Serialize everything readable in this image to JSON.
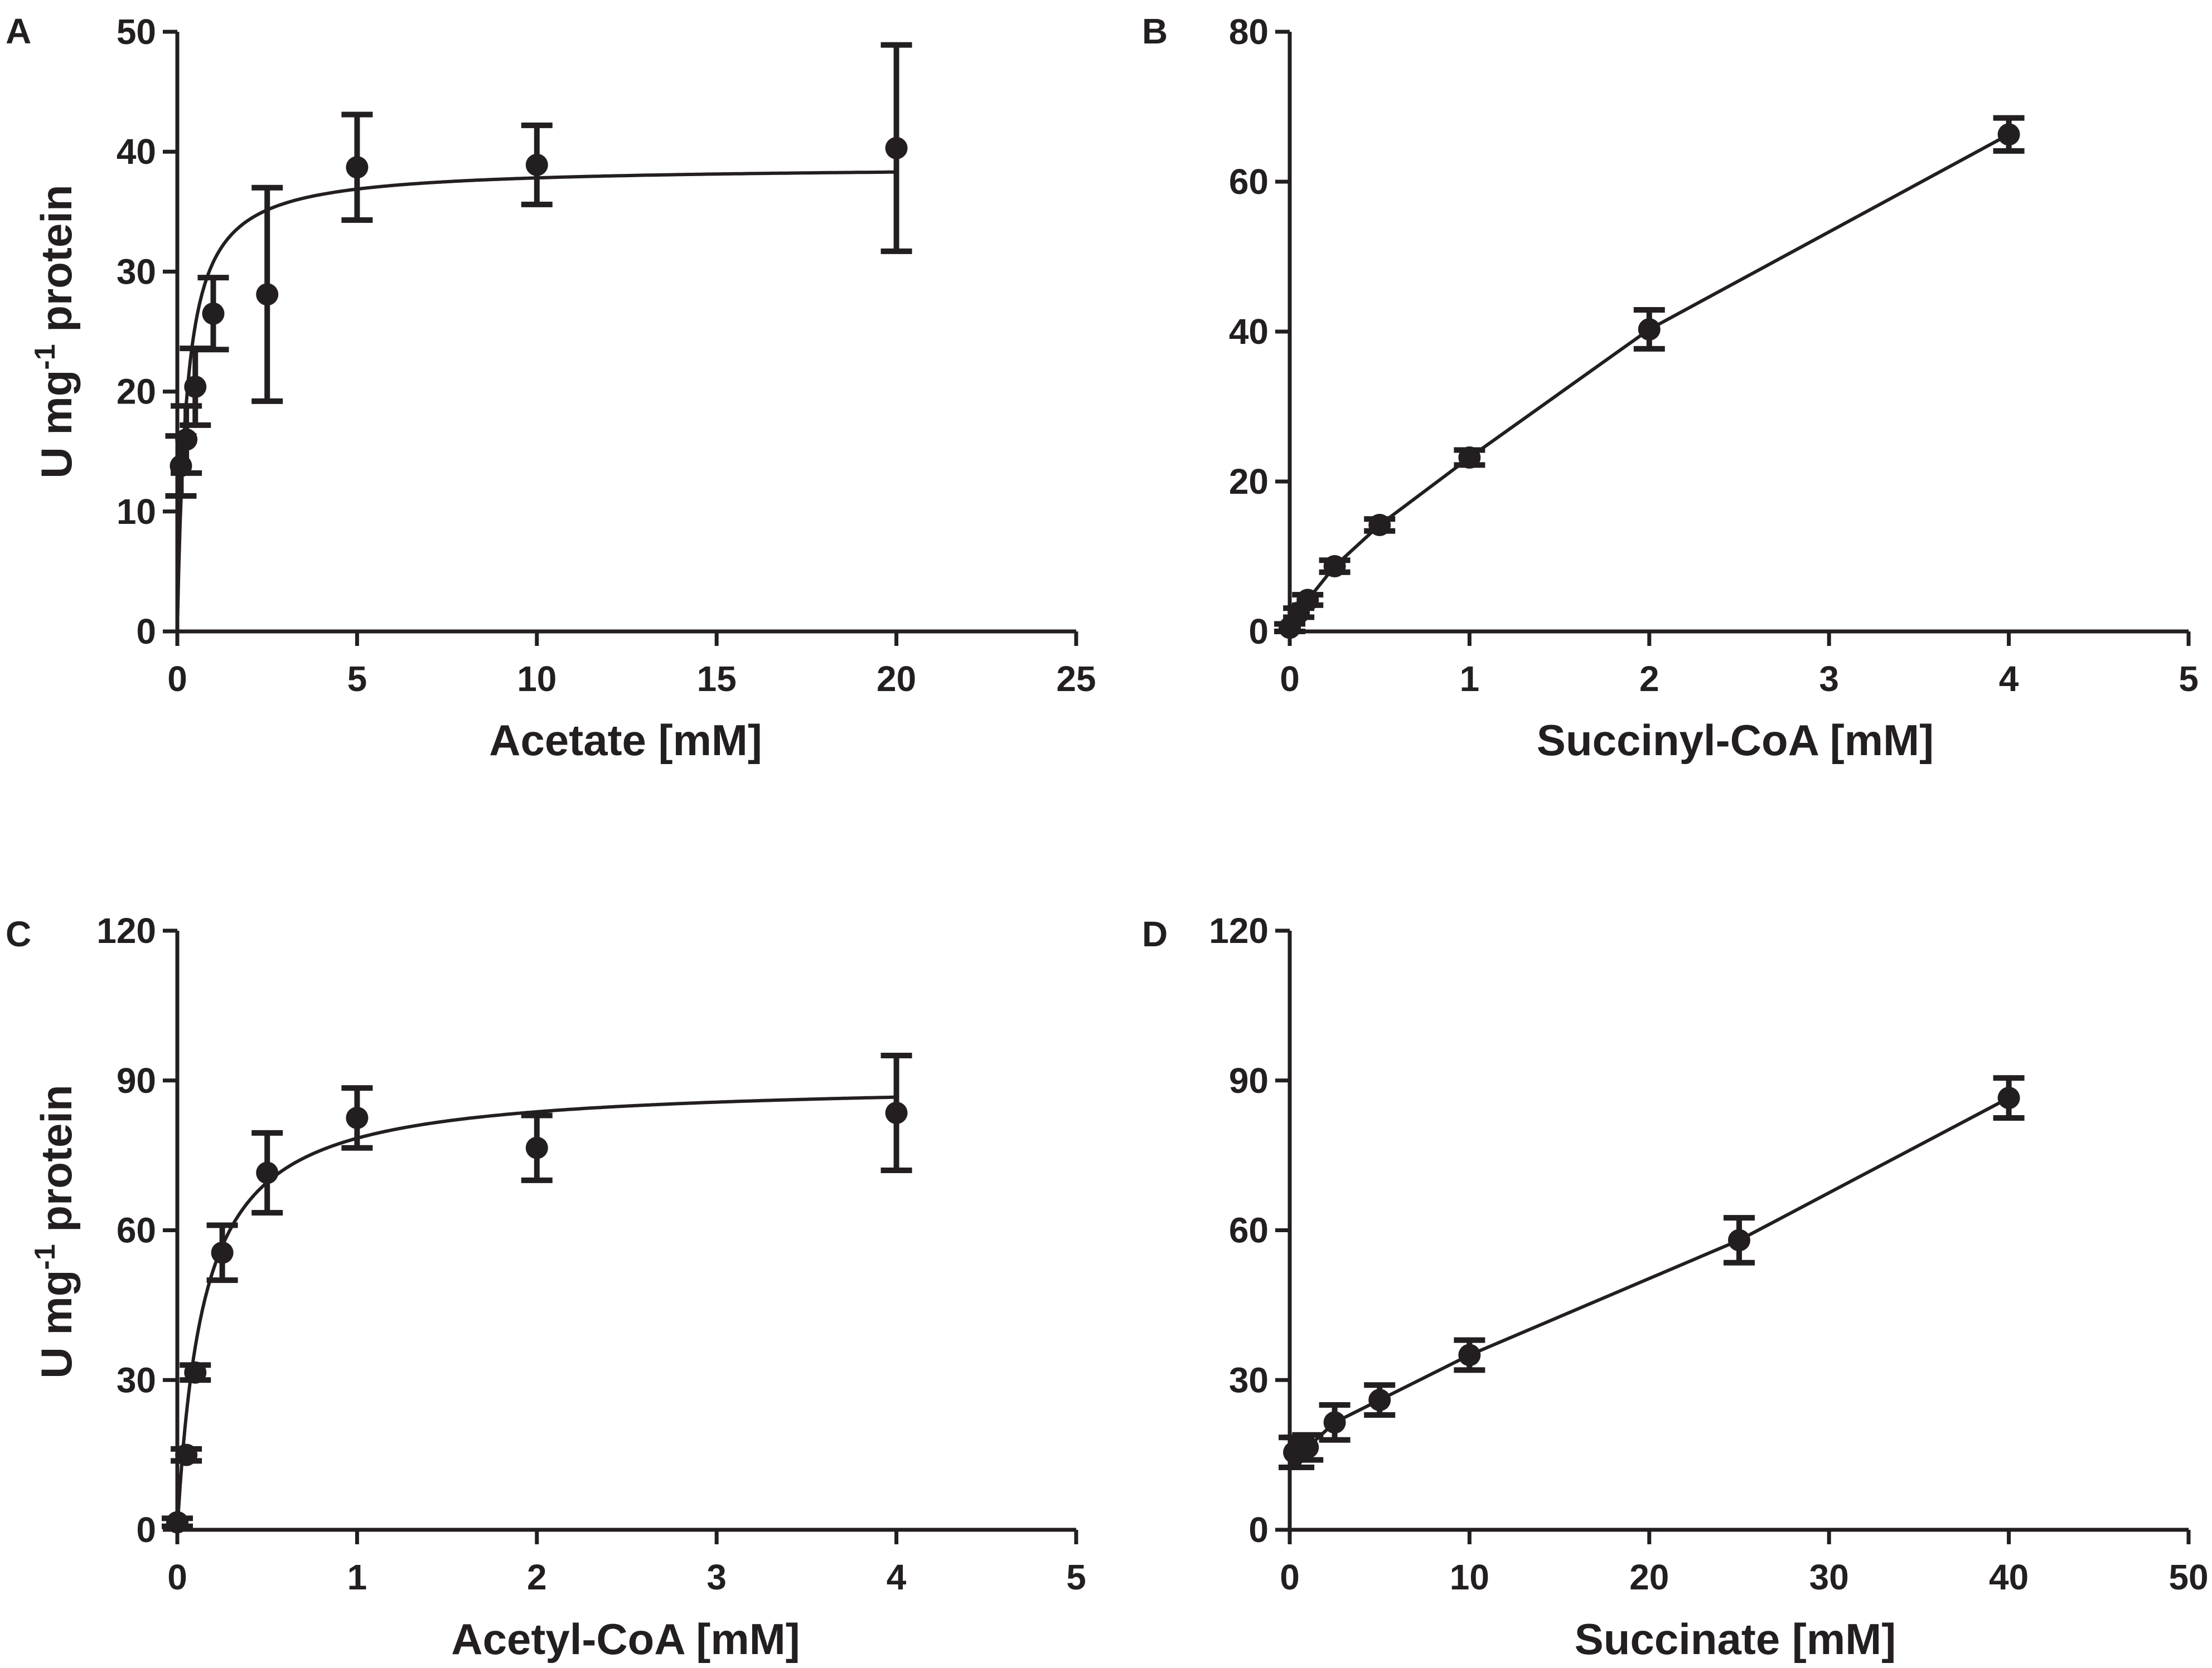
{
  "figure": {
    "background": "#ffffff",
    "ink_color": "#231f20"
  },
  "chart_data": [
    {
      "panel": "A",
      "type": "scatter",
      "fit": "michaelis-menten",
      "fit_params": {
        "vmax": 38.8,
        "km": 0.26
      },
      "xlabel": "Acetate [mM]",
      "ylabel": "U mg",
      "ylabel_sup": "-1",
      "ylabel_rest": " protein",
      "xlim": [
        0,
        25
      ],
      "ylim": [
        0,
        50
      ],
      "xticks": [
        0,
        5,
        10,
        15,
        20,
        25
      ],
      "yticks": [
        0,
        10,
        20,
        30,
        40,
        50
      ],
      "xtick_labels": [
        "0",
        "5",
        "10",
        "15",
        "20",
        "25"
      ],
      "ytick_labels": [
        "0",
        "10",
        "20",
        "30",
        "40",
        "50"
      ],
      "points": [
        {
          "x": 0.1,
          "y": 13.8,
          "err": 2.5
        },
        {
          "x": 0.25,
          "y": 16.0,
          "err": 2.8
        },
        {
          "x": 0.5,
          "y": 20.4,
          "err": 3.2
        },
        {
          "x": 1.0,
          "y": 26.5,
          "err": 3.0
        },
        {
          "x": 2.5,
          "y": 28.1,
          "err": 8.9
        },
        {
          "x": 5.0,
          "y": 38.7,
          "err": 4.4
        },
        {
          "x": 10.0,
          "y": 38.9,
          "err": 3.3
        },
        {
          "x": 20.0,
          "y": 40.3,
          "err": 8.6
        }
      ]
    },
    {
      "panel": "B",
      "type": "scatter",
      "fit": "polyline",
      "xlabel": "Succinyl-CoA [mM]",
      "ylabel": "",
      "ylabel_sup": "",
      "ylabel_rest": "",
      "xlim": [
        0,
        5
      ],
      "ylim": [
        0,
        80
      ],
      "xticks": [
        0,
        1,
        2,
        3,
        4,
        5
      ],
      "yticks": [
        0,
        20,
        40,
        60,
        80
      ],
      "xtick_labels": [
        "0",
        "1",
        "2",
        "3",
        "4",
        "5"
      ],
      "ytick_labels": [
        "0",
        "20",
        "40",
        "60",
        "80"
      ],
      "points": [
        {
          "x": 0.0,
          "y": 0.5,
          "err": 0.5
        },
        {
          "x": 0.05,
          "y": 2.5,
          "err": 0.6
        },
        {
          "x": 0.1,
          "y": 4.2,
          "err": 0.7
        },
        {
          "x": 0.25,
          "y": 8.7,
          "err": 0.8
        },
        {
          "x": 0.5,
          "y": 14.2,
          "err": 0.8
        },
        {
          "x": 1.0,
          "y": 23.2,
          "err": 1.0
        },
        {
          "x": 2.0,
          "y": 40.3,
          "err": 2.6
        },
        {
          "x": 4.0,
          "y": 66.3,
          "err": 2.2
        }
      ]
    },
    {
      "panel": "C",
      "type": "scatter",
      "fit": "michaelis-menten",
      "fit_params": {
        "vmax": 89.8,
        "km": 0.145
      },
      "xlabel": "Acetyl-CoA [mM]",
      "ylabel": "U mg",
      "ylabel_sup": "-1",
      "ylabel_rest": " protein",
      "xlim": [
        0,
        5
      ],
      "ylim": [
        0,
        120
      ],
      "xticks": [
        0,
        1,
        2,
        3,
        4,
        5
      ],
      "yticks": [
        0,
        30,
        60,
        90,
        120
      ],
      "xtick_labels": [
        "0",
        "1",
        "2",
        "3",
        "4",
        "5"
      ],
      "ytick_labels": [
        "0",
        "30",
        "60",
        "90",
        "120"
      ],
      "points": [
        {
          "x": 0.0,
          "y": 1.5,
          "err": 0.8
        },
        {
          "x": 0.05,
          "y": 15.0,
          "err": 1.2
        },
        {
          "x": 0.1,
          "y": 31.5,
          "err": 1.5
        },
        {
          "x": 0.25,
          "y": 55.5,
          "err": 5.5
        },
        {
          "x": 0.5,
          "y": 71.5,
          "err": 8.0
        },
        {
          "x": 1.0,
          "y": 82.5,
          "err": 6.0
        },
        {
          "x": 2.0,
          "y": 76.5,
          "err": 6.5
        },
        {
          "x": 4.0,
          "y": 83.5,
          "err": 11.5
        }
      ]
    },
    {
      "panel": "D",
      "type": "scatter",
      "fit": "polyline",
      "xlabel": "Succinate [mM]",
      "ylabel": "",
      "ylabel_sup": "",
      "ylabel_rest": "",
      "xlim": [
        0,
        50
      ],
      "ylim": [
        0,
        120
      ],
      "xticks": [
        0,
        10,
        20,
        30,
        40,
        50
      ],
      "yticks": [
        0,
        30,
        60,
        90,
        120
      ],
      "xtick_labels": [
        "0",
        "10",
        "20",
        "30",
        "40",
        "50"
      ],
      "ytick_labels": [
        "0",
        "30",
        "60",
        "90",
        "120"
      ],
      "points": [
        {
          "x": 0.25,
          "y": 15.5,
          "err": 3.0
        },
        {
          "x": 0.5,
          "y": 15.5,
          "err": 3.0
        },
        {
          "x": 1.0,
          "y": 16.5,
          "err": 2.5
        },
        {
          "x": 2.5,
          "y": 21.5,
          "err": 3.5
        },
        {
          "x": 5.0,
          "y": 26.0,
          "err": 3.0
        },
        {
          "x": 10.0,
          "y": 35.0,
          "err": 3.0
        },
        {
          "x": 25.0,
          "y": 58.0,
          "err": 4.5
        },
        {
          "x": 40.0,
          "y": 86.5,
          "err": 4.0
        }
      ]
    }
  ]
}
